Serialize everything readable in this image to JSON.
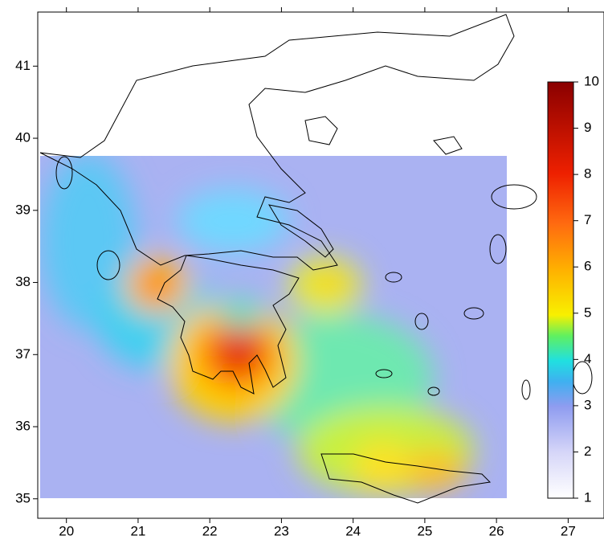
{
  "map": {
    "xlim": [
      19.6,
      27.5
    ],
    "ylim": [
      34.73,
      41.75
    ],
    "xticks": [
      20,
      21,
      22,
      23,
      24,
      25,
      26,
      27
    ],
    "yticks": [
      35,
      36,
      37,
      38,
      39,
      40,
      41
    ]
  },
  "colorbar": {
    "lim": [
      1,
      10
    ],
    "ticks": [
      1,
      2,
      3,
      4,
      5,
      6,
      7,
      8,
      9,
      10
    ]
  }
}
